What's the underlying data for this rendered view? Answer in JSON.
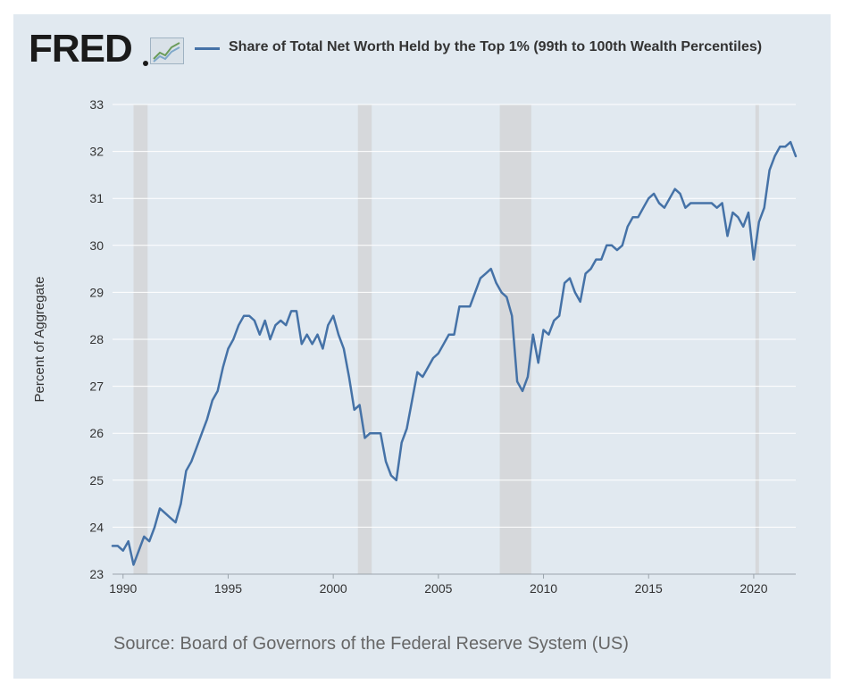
{
  "header": {
    "logo": "FRED",
    "series_title": "Share of Total Net Worth Held by the Top 1% (99th to 100th Wealth Percentiles)"
  },
  "footer": {
    "source": "Source: Board of Governors of the Federal Reserve System (US)"
  },
  "colors": {
    "background": "#e1e9f0",
    "plot_background": "#e1e9f0",
    "series_line": "#4572a7",
    "recession_shade": "#d6d8db",
    "gridline": "#ffffff"
  },
  "icons": [
    "fred-graph-icon"
  ],
  "chart_data": {
    "type": "line",
    "title": "Share of Total Net Worth Held by the Top 1% (99th to 100th Wealth Percentiles)",
    "xlabel": "",
    "ylabel": "Percent of Aggregate",
    "xlim": [
      1989.5,
      2022.0
    ],
    "ylim": [
      23,
      33
    ],
    "yticks": [
      "23",
      "24",
      "25",
      "26",
      "27",
      "28",
      "29",
      "30",
      "31",
      "32",
      "33"
    ],
    "xticks": [
      "1990",
      "1995",
      "2000",
      "2005",
      "2010",
      "2015",
      "2020"
    ],
    "grid": "horizontal",
    "legend_position": "top",
    "recessions": [
      {
        "start": 1990.5,
        "end": 1991.17
      },
      {
        "start": 2001.17,
        "end": 2001.83
      },
      {
        "start": 2007.92,
        "end": 2009.42
      },
      {
        "start": 2020.08,
        "end": 2020.25
      }
    ],
    "series": [
      {
        "name": "Share of Total Net Worth Held by the Top 1% (99th to 100th Wealth Percentiles)",
        "x": [
          1989.5,
          1989.75,
          1990.0,
          1990.25,
          1990.5,
          1990.75,
          1991.0,
          1991.25,
          1991.5,
          1991.75,
          1992.0,
          1992.25,
          1992.5,
          1992.75,
          1993.0,
          1993.25,
          1993.5,
          1993.75,
          1994.0,
          1994.25,
          1994.5,
          1994.75,
          1995.0,
          1995.25,
          1995.5,
          1995.75,
          1996.0,
          1996.25,
          1996.5,
          1996.75,
          1997.0,
          1997.25,
          1997.5,
          1997.75,
          1998.0,
          1998.25,
          1998.5,
          1998.75,
          1999.0,
          1999.25,
          1999.5,
          1999.75,
          2000.0,
          2000.25,
          2000.5,
          2000.75,
          2001.0,
          2001.25,
          2001.5,
          2001.75,
          2002.0,
          2002.25,
          2002.5,
          2002.75,
          2003.0,
          2003.25,
          2003.5,
          2003.75,
          2004.0,
          2004.25,
          2004.5,
          2004.75,
          2005.0,
          2005.25,
          2005.5,
          2005.75,
          2006.0,
          2006.25,
          2006.5,
          2006.75,
          2007.0,
          2007.25,
          2007.5,
          2007.75,
          2008.0,
          2008.25,
          2008.5,
          2008.75,
          2009.0,
          2009.25,
          2009.5,
          2009.75,
          2010.0,
          2010.25,
          2010.5,
          2010.75,
          2011.0,
          2011.25,
          2011.5,
          2011.75,
          2012.0,
          2012.25,
          2012.5,
          2012.75,
          2013.0,
          2013.25,
          2013.5,
          2013.75,
          2014.0,
          2014.25,
          2014.5,
          2014.75,
          2015.0,
          2015.25,
          2015.5,
          2015.75,
          2016.0,
          2016.25,
          2016.5,
          2016.75,
          2017.0,
          2017.25,
          2017.5,
          2017.75,
          2018.0,
          2018.25,
          2018.5,
          2018.75,
          2019.0,
          2019.25,
          2019.5,
          2019.75,
          2020.0,
          2020.25,
          2020.5,
          2020.75,
          2021.0,
          2021.25,
          2021.5,
          2021.75,
          2022.0
        ],
        "values": [
          23.6,
          23.6,
          23.5,
          23.7,
          23.2,
          23.5,
          23.8,
          23.7,
          24.0,
          24.4,
          24.3,
          24.2,
          24.1,
          24.5,
          25.2,
          25.4,
          25.7,
          26.0,
          26.3,
          26.7,
          26.9,
          27.4,
          27.8,
          28.0,
          28.3,
          28.5,
          28.5,
          28.4,
          28.1,
          28.4,
          28.0,
          28.3,
          28.4,
          28.3,
          28.6,
          28.6,
          27.9,
          28.1,
          27.9,
          28.1,
          27.8,
          28.3,
          28.5,
          28.1,
          27.8,
          27.2,
          26.5,
          26.6,
          25.9,
          26.0,
          26.0,
          26.0,
          25.4,
          25.1,
          25.0,
          25.8,
          26.1,
          26.7,
          27.3,
          27.2,
          27.4,
          27.6,
          27.7,
          27.9,
          28.1,
          28.1,
          28.7,
          28.7,
          28.7,
          29.0,
          29.3,
          29.4,
          29.5,
          29.2,
          29.0,
          28.9,
          28.5,
          27.1,
          26.9,
          27.2,
          28.1,
          27.5,
          28.2,
          28.1,
          28.4,
          28.5,
          29.2,
          29.3,
          29.0,
          28.8,
          29.4,
          29.5,
          29.7,
          29.7,
          30.0,
          30.0,
          29.9,
          30.0,
          30.4,
          30.6,
          30.6,
          30.8,
          31.0,
          31.1,
          30.9,
          30.8,
          31.0,
          31.2,
          31.1,
          30.8,
          30.9,
          30.9,
          30.9,
          30.9,
          30.9,
          30.8,
          30.9,
          30.2,
          30.7,
          30.6,
          30.4,
          30.7,
          29.7,
          30.5,
          30.8,
          31.6,
          31.9,
          32.1,
          32.1,
          32.2,
          31.9
        ]
      }
    ]
  }
}
